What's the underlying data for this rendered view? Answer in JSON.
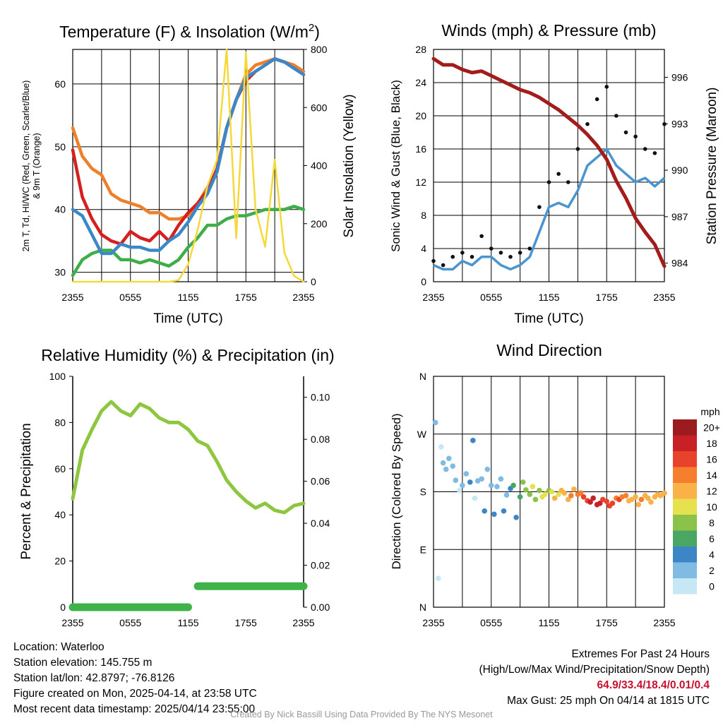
{
  "chart_data": [
    {
      "type": "line",
      "title": "Temperature (F) & Insolation (W/m²)",
      "title_parts": {
        "text": "Temperature (F) & Insolation (W/m",
        "sup": "2",
        "close": ")"
      },
      "xlabel": "Time (UTC)",
      "ylabel_lines": [
        "2m T, Td, HI/WC (Red, Green, Scarlet/Blue)",
        "& 9m T (Orange)"
      ],
      "ylabel_right": "Solar Insolation (Yellow)",
      "x_ticks": [
        "2355",
        "0555",
        "1155",
        "1755",
        "2355"
      ],
      "ylim": [
        28.5,
        65.5
      ],
      "y_ticks": [
        30,
        40,
        50,
        60
      ],
      "y2lim": [
        0,
        800
      ],
      "y2_ticks": [
        0,
        200,
        400,
        600,
        800
      ],
      "x_hours": [
        0,
        1,
        2,
        3,
        4,
        5,
        6,
        7,
        8,
        9,
        10,
        11,
        12,
        13,
        14,
        15,
        16,
        17,
        18,
        19,
        20,
        21,
        22,
        23,
        24
      ],
      "series": [
        {
          "name": "9m T (Orange)",
          "color": "#f07f2a",
          "axis": "left",
          "values": [
            53.0,
            48.5,
            46.5,
            45.5,
            42.5,
            41.5,
            41.0,
            40.5,
            39.5,
            39.5,
            38.5,
            38.5,
            39.0,
            41.0,
            43.5,
            46.0,
            53.0,
            57.5,
            61.5,
            63.0,
            63.5,
            64.0,
            63.5,
            63.0,
            62.0
          ]
        },
        {
          "name": "2m T (Red)",
          "color": "#d62020",
          "axis": "left",
          "values": [
            49.5,
            42.0,
            38.5,
            36.0,
            35.0,
            34.5,
            36.5,
            35.5,
            35.0,
            36.5,
            35.0,
            37.5,
            39.5,
            41.0,
            43.0,
            46.5,
            53.0,
            57.5,
            60.5,
            62.0,
            63.0,
            64.0,
            63.5,
            62.5,
            61.5
          ]
        },
        {
          "name": "Td (Green)",
          "color": "#3fae49",
          "axis": "left",
          "values": [
            29.5,
            32.0,
            33.0,
            33.5,
            33.5,
            32.0,
            32.0,
            31.5,
            32.0,
            31.5,
            31.0,
            32.0,
            34.0,
            35.5,
            37.5,
            37.5,
            38.5,
            39.0,
            39.0,
            39.5,
            40.0,
            40.0,
            40.0,
            40.5,
            40.0
          ]
        },
        {
          "name": "HI/WC (Blue)",
          "color": "#3b88c9",
          "axis": "left",
          "values": [
            40.0,
            39.0,
            36.0,
            33.0,
            33.0,
            34.5,
            34.0,
            34.0,
            33.5,
            33.5,
            35.0,
            36.0,
            38.0,
            40.5,
            42.5,
            46.0,
            53.0,
            57.5,
            61.0,
            62.0,
            63.0,
            64.0,
            63.5,
            62.5,
            61.5
          ]
        },
        {
          "name": "Solar Insolation (Yellow)",
          "color": "#f5d93a",
          "axis": "right",
          "values": [
            0,
            0,
            0,
            0,
            0,
            0,
            0,
            0,
            0,
            0,
            0,
            5,
            60,
            180,
            330,
            420,
            800,
            150,
            790,
            250,
            120,
            420,
            100,
            20,
            0
          ]
        }
      ]
    },
    {
      "type": "line",
      "title": "Winds (mph) & Pressure (mb)",
      "xlabel": "Time (UTC)",
      "ylabel": "Sonic Wind & Gust (Blue, Black)",
      "ylabel_right": "Station Pressure (Maroon)",
      "x_ticks": [
        "2355",
        "0555",
        "1155",
        "1755",
        "2355"
      ],
      "ylim": [
        0,
        28
      ],
      "y_ticks": [
        0,
        4,
        8,
        12,
        16,
        20,
        24,
        28
      ],
      "y2lim": [
        982.8,
        997.8
      ],
      "y2_ticks": [
        984,
        987,
        990,
        993,
        996
      ],
      "x_hours": [
        0,
        1,
        2,
        3,
        4,
        5,
        6,
        7,
        8,
        9,
        10,
        11,
        12,
        13,
        14,
        15,
        16,
        17,
        18,
        19,
        20,
        21,
        22,
        23,
        24
      ],
      "series": [
        {
          "name": "Sonic Wind (Blue)",
          "color": "#4a95d0",
          "axis": "left",
          "values": [
            2,
            1.5,
            1.5,
            2.5,
            2,
            3,
            3,
            2,
            1.5,
            2,
            3,
            6,
            9,
            9.5,
            9,
            11,
            14,
            15,
            16,
            14,
            13,
            12,
            12.5,
            11.5,
            12.5
          ]
        },
        {
          "name": "Gust (Black)",
          "color": "#111111",
          "axis": "left",
          "marker": "dot",
          "values": [
            2.5,
            2,
            3,
            3.5,
            3,
            5.5,
            4,
            3.5,
            3,
            3.5,
            4,
            9,
            12,
            13,
            12,
            16,
            19,
            22,
            23.5,
            20,
            18,
            17.5,
            16,
            15.5,
            19
          ]
        },
        {
          "name": "Station Pressure (Maroon)",
          "color": "#a31c1c",
          "axis": "right",
          "values": [
            997.2,
            996.8,
            996.8,
            996.5,
            996.3,
            996.4,
            996.1,
            995.8,
            995.5,
            995.2,
            995.0,
            994.7,
            994.3,
            993.9,
            993.4,
            992.9,
            992.3,
            991.6,
            990.7,
            989.3,
            988.2,
            986.9,
            986.0,
            985.2,
            983.8
          ]
        }
      ]
    },
    {
      "type": "line",
      "title": "Relative Humidity (%) & Precipitation (in)",
      "ylabel": "Percent & Precipitation",
      "x_ticks": [
        "2355",
        "0555",
        "1155",
        "1755",
        "2355"
      ],
      "ylim": [
        0,
        100
      ],
      "y_ticks": [
        0,
        20,
        40,
        60,
        80,
        100
      ],
      "y2lim": [
        0,
        0.11
      ],
      "y2_ticks": [
        "0.00",
        "0.02",
        "0.04",
        "0.06",
        "0.08",
        "0.10"
      ],
      "x_hours": [
        0,
        1,
        2,
        3,
        4,
        5,
        6,
        7,
        8,
        9,
        10,
        11,
        12,
        13,
        14,
        15,
        16,
        17,
        18,
        19,
        20,
        21,
        22,
        23,
        24
      ],
      "series": [
        {
          "name": "Relative Humidity",
          "color": "#8dc63f",
          "axis": "left",
          "values": [
            47,
            68,
            77,
            85,
            89,
            85,
            83,
            88,
            86,
            82,
            80,
            80,
            77,
            72,
            70,
            63,
            55,
            50,
            46,
            43,
            45,
            42,
            41,
            44,
            45
          ]
        },
        {
          "name": "Precipitation",
          "color": "#3fb34a",
          "axis": "right",
          "values": [
            0,
            0,
            0,
            0,
            0,
            0,
            0,
            0,
            0,
            0,
            0,
            0,
            0,
            0.01,
            0.01,
            0.01,
            0.01,
            0.01,
            0.01,
            0.01,
            0.01,
            0.01,
            0.01,
            0.01,
            0.01
          ]
        }
      ]
    },
    {
      "type": "scatter",
      "title": "Wind Direction",
      "ylabel": "Direction (Colored By Speed)",
      "x_ticks": [
        "2355",
        "0555",
        "1155",
        "1755",
        "2355"
      ],
      "y_categories": [
        "N",
        "E",
        "S",
        "W",
        "N"
      ],
      "ylim": [
        0,
        360
      ],
      "legend": {
        "title": "mph",
        "labels": [
          "0",
          "2",
          "4",
          "6",
          "8",
          "10",
          "12",
          "14",
          "16",
          "18",
          "20+"
        ],
        "colors": [
          "#c6e8f5",
          "#7fbbe2",
          "#3d86c6",
          "#4aa663",
          "#8bc34a",
          "#e6e14e",
          "#f9b148",
          "#f57f2d",
          "#e8432a",
          "#c72027",
          "#9b1b1e"
        ]
      },
      "x_hours": [
        0.2,
        0.5,
        0.8,
        1.0,
        1.3,
        1.6,
        2.0,
        2.3,
        2.7,
        3.0,
        3.4,
        3.8,
        4.1,
        4.3,
        4.6,
        5.0,
        5.3,
        5.6,
        6.0,
        6.3,
        6.6,
        7.0,
        7.3,
        7.6,
        8.0,
        8.3,
        8.6,
        9.0,
        9.3,
        9.6,
        10.0,
        10.3,
        10.6,
        11.0,
        11.3,
        11.6,
        12.0,
        12.3,
        12.6,
        13.0,
        13.3,
        13.6,
        14.0,
        14.3,
        14.6,
        15.0,
        15.3,
        15.6,
        16.0,
        16.3,
        16.6,
        17.0,
        17.3,
        17.6,
        18.0,
        18.3,
        18.6,
        19.0,
        19.3,
        19.6,
        20.0,
        20.3,
        20.6,
        21.0,
        21.3,
        21.6,
        22.0,
        22.3,
        22.6,
        23.0,
        23.3,
        23.6,
        24.0
      ],
      "y_values": [
        288,
        45,
        250,
        225,
        215,
        232,
        220,
        198,
        182,
        190,
        208,
        195,
        260,
        170,
        197,
        200,
        150,
        215,
        190,
        145,
        188,
        200,
        150,
        175,
        185,
        190,
        140,
        172,
        195,
        183,
        176,
        188,
        168,
        182,
        172,
        176,
        182,
        180,
        170,
        176,
        182,
        178,
        168,
        174,
        184,
        176,
        178,
        172,
        166,
        164,
        170,
        160,
        162,
        168,
        165,
        158,
        162,
        170,
        168,
        172,
        174,
        166,
        168,
        172,
        160,
        168,
        174,
        170,
        164,
        172,
        176,
        174,
        178
      ],
      "speeds": [
        2,
        0,
        1,
        2,
        3,
        2,
        3,
        2,
        1,
        2,
        3,
        4,
        4,
        1,
        3,
        2,
        4,
        3,
        2,
        4,
        3,
        2,
        4,
        3,
        5,
        6,
        4,
        7,
        9,
        8,
        9,
        10,
        8,
        9,
        10,
        10,
        9,
        11,
        12,
        11,
        12,
        13,
        13,
        14,
        12,
        14,
        15,
        16,
        17,
        18,
        18,
        19,
        18,
        17,
        17,
        16,
        17,
        15,
        16,
        14,
        14,
        13,
        12,
        12,
        13,
        14,
        12,
        12,
        13,
        12,
        12,
        13,
        12
      ]
    }
  ],
  "info": {
    "location": "Location: Waterloo",
    "elevation": "Station elevation: 145.755 m",
    "latlon": "Station lat/lon: 42.8797; -76.8126",
    "created": "Figure created on Mon, 2025-04-14, at 23:58 UTC",
    "recent": "Most recent data timestamp: 2025/04/14 23:55:00"
  },
  "extremes": {
    "heading": "Extremes For Past 24 Hours",
    "subheading": "(High/Low/Max Wind/Precipitation/Snow Depth)",
    "values": "64.9/33.4/18.4/0.01/0.4",
    "max_gust": "Max Gust: 25 mph On 04/14 at 1815 UTC"
  },
  "credit": "Created By Nick Bassill Using Data Provided By The NYS Mesonet"
}
